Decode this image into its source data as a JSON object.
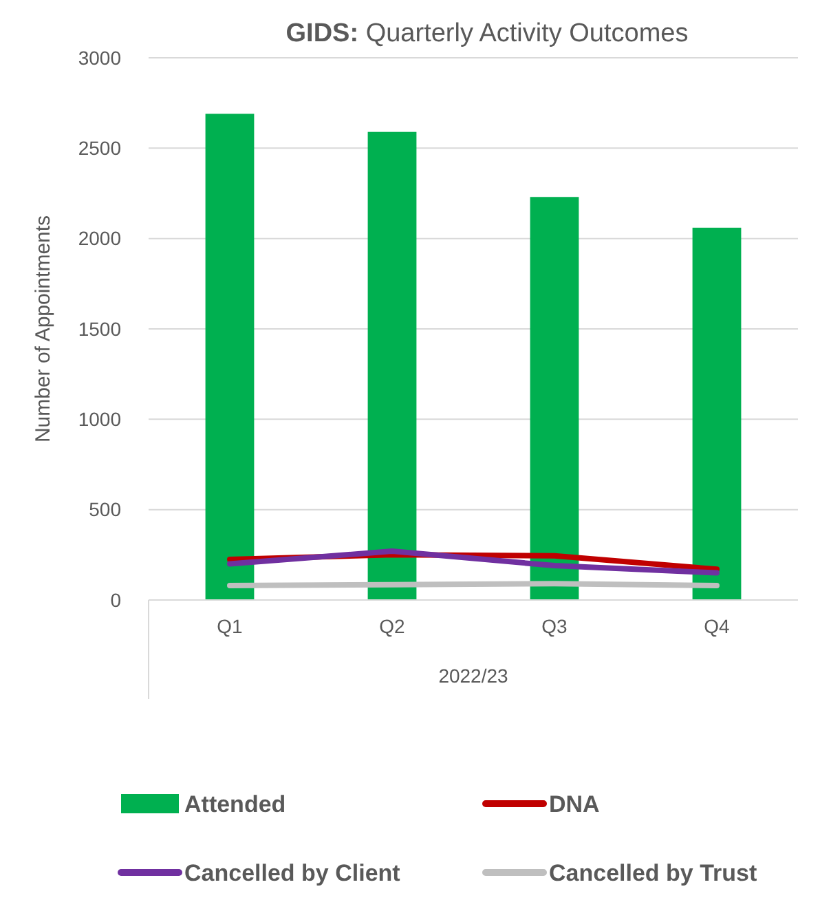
{
  "chart_data": {
    "type": "bar",
    "title": "GIDS: Quarterly Activity Outcomes",
    "ylabel": "Number of Appointments",
    "xlabel": "2022/23",
    "categories": [
      "Q1",
      "Q2",
      "Q3",
      "Q4"
    ],
    "series": [
      {
        "name": "Attended",
        "color": "#00b050",
        "values": [
          2690,
          2590,
          2230,
          2060
        ]
      },
      {
        "name": "DNA",
        "type": "line",
        "color": "#c00000",
        "values": [
          225,
          250,
          245,
          170
        ]
      },
      {
        "name": "Cancelled by Client",
        "type": "line",
        "color": "#7030a0",
        "values": [
          200,
          270,
          190,
          150
        ]
      },
      {
        "name": "Cancelled by Trust",
        "type": "line",
        "color": "#bfbfbf",
        "values": [
          80,
          85,
          90,
          80
        ]
      }
    ],
    "ylim": [
      0,
      3000
    ],
    "yticks": [
      0,
      500,
      1000,
      1500,
      2000,
      2500,
      3000
    ],
    "grid": "y",
    "legend": "bottom",
    "marker": "none",
    "line_style": "solid"
  }
}
